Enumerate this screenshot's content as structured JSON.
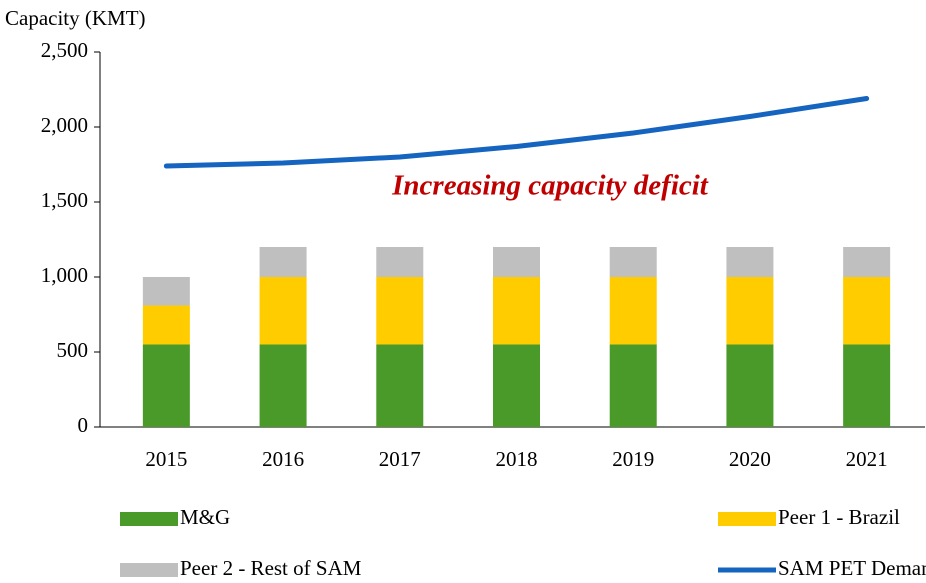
{
  "chart_data": {
    "type": "bar",
    "stacked": true,
    "y_label": "Capacity (KMT)",
    "annotation": "Increasing capacity deficit",
    "categories": [
      "2015",
      "2016",
      "2017",
      "2018",
      "2019",
      "2020",
      "2021"
    ],
    "series": [
      {
        "name": "M&G",
        "type": "bar",
        "color": "#4a9a2a",
        "values": [
          550,
          550,
          550,
          550,
          550,
          550,
          550
        ]
      },
      {
        "name": "Peer 1 - Brazil",
        "type": "bar",
        "color": "#ffcc00",
        "values": [
          260,
          450,
          450,
          450,
          450,
          450,
          450
        ]
      },
      {
        "name": "Peer 2 - Rest of SAM",
        "type": "bar",
        "color": "#bfbfbf",
        "values": [
          190,
          200,
          200,
          200,
          200,
          200,
          200
        ]
      },
      {
        "name": "SAM PET Demand",
        "type": "line",
        "color": "#1464c0",
        "values": [
          1740,
          1760,
          1800,
          1870,
          1960,
          2070,
          2190
        ]
      }
    ],
    "ylim": [
      0,
      2500
    ],
    "yticks": [
      0,
      500,
      {
        "value": 1000,
        "label": "1,000"
      },
      {
        "value": 1500,
        "label": "1,500"
      },
      {
        "value": 2000,
        "label": "2,000"
      },
      {
        "value": 2500,
        "label": "2,500"
      }
    ]
  }
}
